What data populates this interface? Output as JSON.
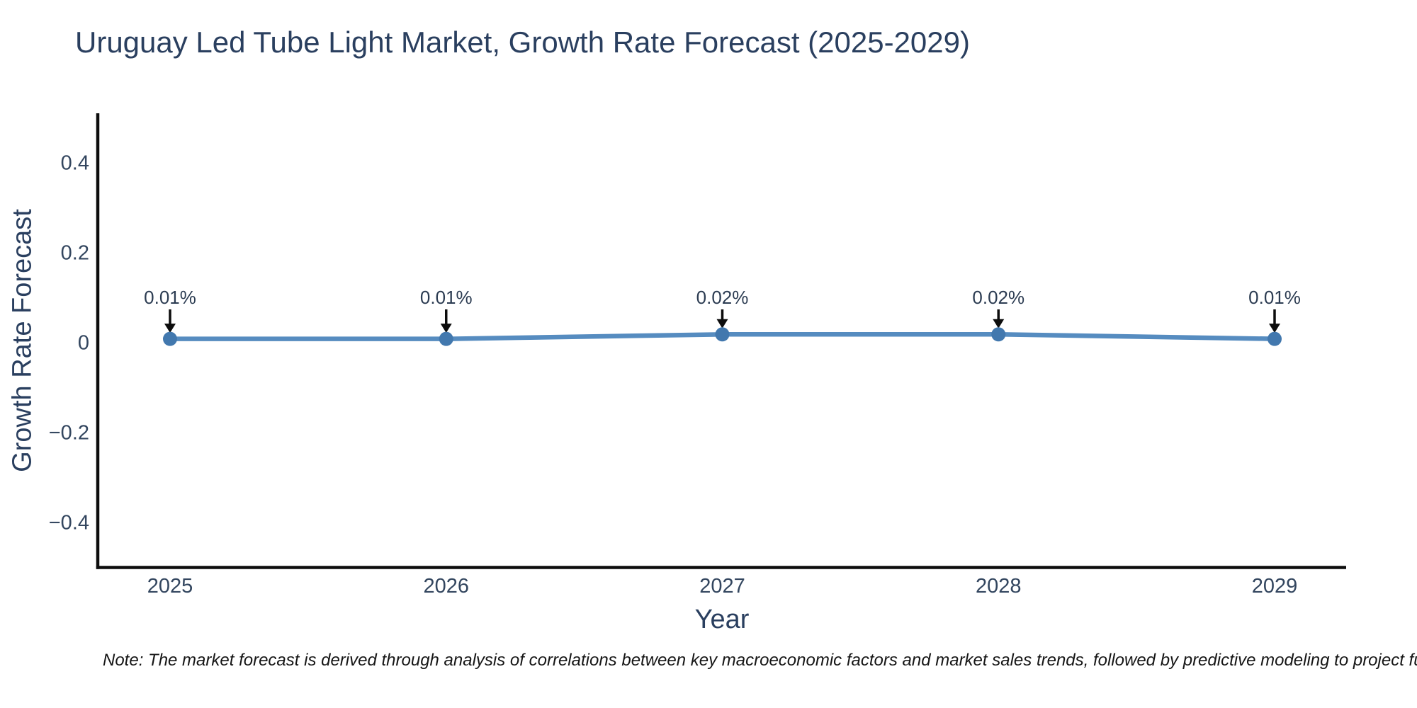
{
  "title": "Uruguay Led Tube Light Market, Growth Rate Forecast (2025-2029)",
  "note": "Note: The market forecast is derived through analysis of correlations between key macroeconomic factors and market sales trends, followed by predictive modeling to project future sa",
  "chart_data": {
    "type": "line",
    "title": "Uruguay Led Tube Light Market, Growth Rate Forecast (2025-2029)",
    "xlabel": "Year",
    "ylabel": "Growth Rate Forecast",
    "categories": [
      "2025",
      "2026",
      "2027",
      "2028",
      "2029"
    ],
    "values": [
      0.01,
      0.01,
      0.02,
      0.02,
      0.01
    ],
    "point_labels": [
      "0.01%",
      "0.01%",
      "0.02%",
      "0.02%",
      "0.01%"
    ],
    "ytick_labels": [
      "0.4",
      "0.2",
      "0",
      "−0.2",
      "−0.4"
    ],
    "ytick_values": [
      0.4,
      0.2,
      0,
      -0.2,
      -0.4
    ],
    "xlim": [
      2024.74,
      2029.26
    ],
    "ylim": [
      -0.5,
      0.512
    ],
    "grid": false,
    "legend": false,
    "line_color": "#568cc0",
    "marker_color": "#4278ae",
    "arrow_color": "#0d0d0d",
    "axis_color": "#0d0d0d",
    "text_color": "#2a3f5f"
  }
}
